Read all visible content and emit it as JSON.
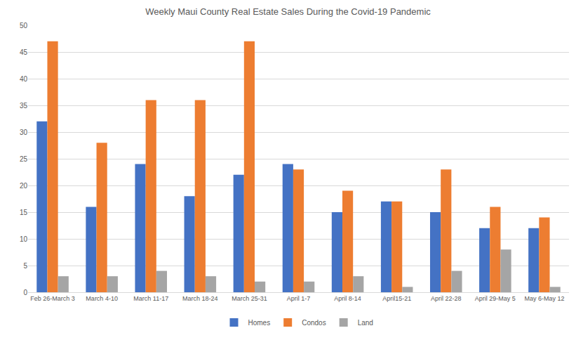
{
  "chart_data": {
    "type": "bar",
    "title": "Weekly Maui County Real Estate Sales During the Covid-19 Pandemic",
    "categories": [
      "Feb 26-March 3",
      "March 4-10",
      "March 11-17",
      "March 18-24",
      "March 25-31",
      "April 1-7",
      "April 8-14",
      "April15-21",
      "April 22-28",
      "April 29-May 5",
      "May 6-May 12"
    ],
    "series": [
      {
        "name": "Homes",
        "color": "#4472c4",
        "values": [
          32,
          16,
          24,
          18,
          22,
          24,
          15,
          17,
          15,
          12,
          12
        ]
      },
      {
        "name": "Condos",
        "color": "#ed7d31",
        "values": [
          47,
          28,
          36,
          36,
          47,
          23,
          19,
          17,
          23,
          16,
          14
        ]
      },
      {
        "name": "Land",
        "color": "#a5a5a5",
        "values": [
          3,
          3,
          4,
          3,
          2,
          2,
          3,
          1,
          4,
          8,
          1
        ]
      }
    ],
    "ylim": [
      0,
      50
    ],
    "yticks": [
      0,
      5,
      10,
      15,
      20,
      25,
      30,
      35,
      40,
      45,
      50
    ],
    "grid": true,
    "legend": "bottom"
  }
}
